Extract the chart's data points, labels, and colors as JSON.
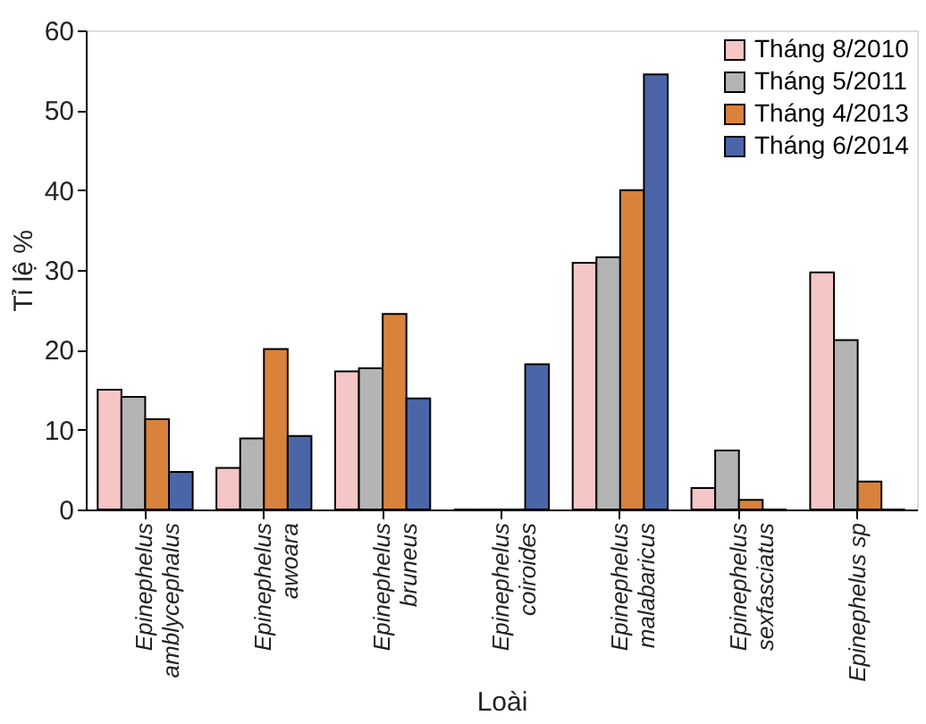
{
  "chart_data": {
    "type": "bar",
    "xlabel": "Loài",
    "ylabel": "Tỉ lệ %",
    "categories": [
      "Epinephelus\namblycephalus",
      "Epinephelus\nawoara",
      "Epinephelus\nbruneus",
      "Epinephelus\ncoiroides",
      "Epinephelus\nmalabaricus",
      "Epinephelus\nsexfasciatus",
      "Epinephelus sp"
    ],
    "series": [
      {
        "name": "Tháng 8/2010",
        "color": "#f6c6c6",
        "values": [
          15.0,
          5.2,
          17.3,
          0,
          30.9,
          2.7,
          29.7
        ]
      },
      {
        "name": "Tháng 5/2011",
        "color": "#b4b4b4",
        "values": [
          14.1,
          8.9,
          17.7,
          0,
          31.6,
          7.4,
          21.2
        ]
      },
      {
        "name": "Tháng 4/2013",
        "color": "#d9823b",
        "values": [
          11.3,
          20.1,
          24.5,
          0,
          40.0,
          1.2,
          3.5
        ]
      },
      {
        "name": "Tháng 6/2014",
        "color": "#4a66a8",
        "values": [
          4.7,
          9.2,
          13.9,
          18.2,
          54.5,
          0,
          0
        ]
      }
    ],
    "ylim": [
      0,
      60
    ],
    "yticks": [
      0,
      10,
      20,
      30,
      40,
      50,
      60
    ],
    "grid": false,
    "legend": "top right"
  }
}
